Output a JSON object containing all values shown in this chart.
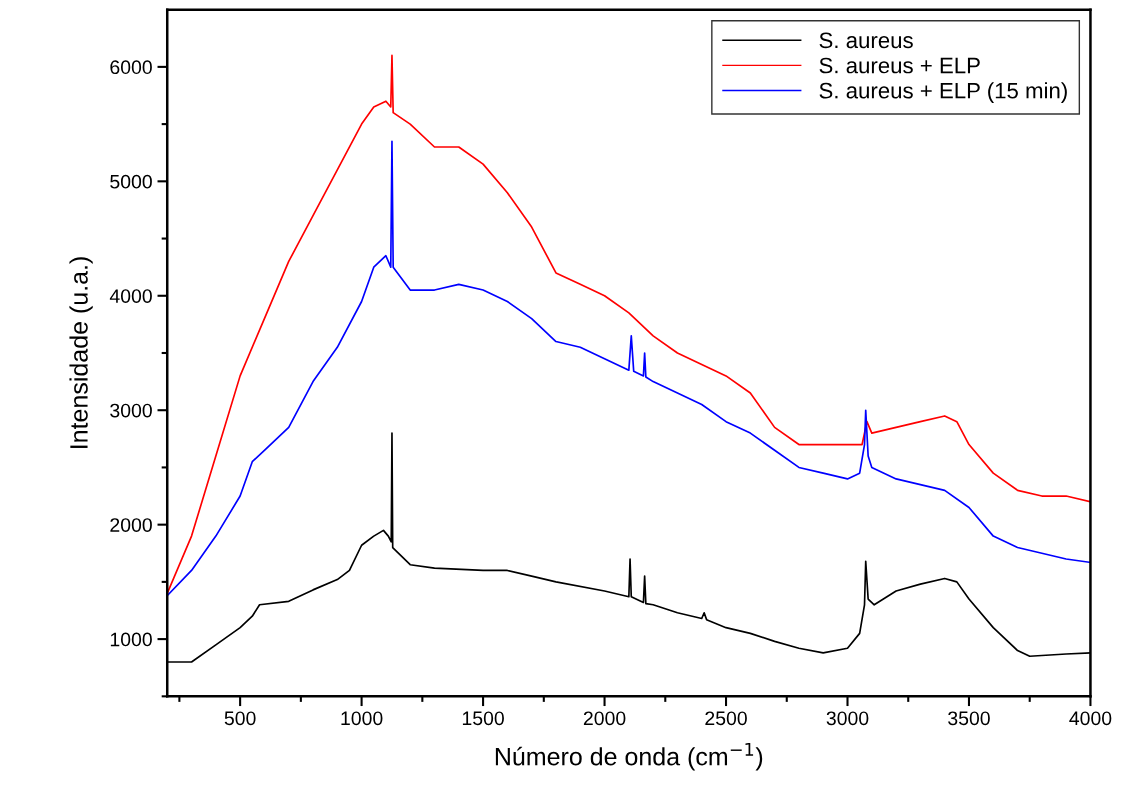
{
  "chart_data": {
    "type": "line",
    "xlabel": "Número de onda (cm$^{−1}$)",
    "ylabel": "Intensidade (u.a.)",
    "xlim": [
      200,
      4000
    ],
    "ylim": [
      500,
      6500
    ],
    "xticks": [
      500,
      1000,
      1500,
      2000,
      2500,
      3000,
      3500,
      4000
    ],
    "yticks": [
      1000,
      2000,
      3000,
      4000,
      5000,
      6000
    ],
    "legend": "top right",
    "grid": false,
    "series": [
      {
        "name": "S. aureus",
        "color": "#000000",
        "x": [
          200,
          300,
          400,
          500,
          550,
          580,
          700,
          800,
          900,
          950,
          1000,
          1050,
          1090,
          1110,
          1122,
          1125,
          1128,
          1200,
          1300,
          1500,
          1600,
          1700,
          1800,
          2000,
          2100,
          2105,
          2110,
          2160,
          2165,
          2170,
          2200,
          2300,
          2400,
          2410,
          2420,
          2500,
          2600,
          2700,
          2800,
          2900,
          3000,
          3050,
          3070,
          3075,
          3085,
          3110,
          3200,
          3300,
          3400,
          3450,
          3500,
          3600,
          3700,
          3750,
          3900,
          4000
        ],
        "values": [
          800,
          800,
          950,
          1100,
          1200,
          1300,
          1330,
          1430,
          1520,
          1600,
          1820,
          1900,
          1950,
          1900,
          1850,
          2800,
          1800,
          1650,
          1620,
          1600,
          1600,
          1550,
          1500,
          1420,
          1370,
          1700,
          1370,
          1320,
          1550,
          1310,
          1300,
          1230,
          1180,
          1230,
          1170,
          1100,
          1050,
          980,
          920,
          880,
          920,
          1050,
          1300,
          1680,
          1350,
          1300,
          1420,
          1480,
          1530,
          1500,
          1350,
          1100,
          900,
          850,
          870,
          880
        ]
      },
      {
        "name": "S. aureus + ELP",
        "color": "#ff0000",
        "x": [
          200,
          300,
          400,
          500,
          600,
          700,
          800,
          900,
          1000,
          1050,
          1100,
          1120,
          1125,
          1130,
          1200,
          1300,
          1400,
          1500,
          1600,
          1700,
          1800,
          1900,
          2000,
          2100,
          2200,
          2300,
          2400,
          2500,
          2600,
          2700,
          2800,
          2900,
          3000,
          3060,
          3080,
          3100,
          3200,
          3300,
          3400,
          3450,
          3500,
          3600,
          3700,
          3800,
          3900,
          4000
        ],
        "values": [
          1400,
          1900,
          2600,
          3300,
          3800,
          4300,
          4700,
          5100,
          5500,
          5650,
          5700,
          5650,
          6100,
          5600,
          5500,
          5300,
          5300,
          5150,
          4900,
          4600,
          4200,
          4100,
          4000,
          3850,
          3650,
          3500,
          3400,
          3300,
          3150,
          2850,
          2700,
          2700,
          2700,
          2700,
          2900,
          2800,
          2850,
          2900,
          2950,
          2900,
          2700,
          2450,
          2300,
          2250,
          2250,
          2200
        ]
      },
      {
        "name": "S. aureus + ELP (15 min)",
        "color": "#0000ff",
        "x": [
          200,
          300,
          400,
          500,
          550,
          600,
          700,
          800,
          900,
          1000,
          1050,
          1100,
          1120,
          1125,
          1130,
          1200,
          1300,
          1400,
          1500,
          1600,
          1700,
          1800,
          1900,
          2000,
          2100,
          2110,
          2120,
          2160,
          2165,
          2170,
          2200,
          2300,
          2400,
          2500,
          2600,
          2700,
          2800,
          2900,
          3000,
          3050,
          3070,
          3075,
          3085,
          3100,
          3200,
          3300,
          3400,
          3500,
          3600,
          3700,
          3800,
          3900,
          4000
        ],
        "values": [
          1380,
          1600,
          1900,
          2250,
          2550,
          2650,
          2850,
          3250,
          3550,
          3950,
          4250,
          4350,
          4250,
          5350,
          4250,
          4050,
          4050,
          4100,
          4050,
          3950,
          3800,
          3600,
          3550,
          3450,
          3350,
          3650,
          3340,
          3300,
          3500,
          3290,
          3250,
          3150,
          3050,
          2900,
          2800,
          2650,
          2500,
          2450,
          2400,
          2450,
          2700,
          3000,
          2600,
          2500,
          2400,
          2350,
          2300,
          2150,
          1900,
          1800,
          1750,
          1700,
          1670
        ]
      }
    ]
  }
}
